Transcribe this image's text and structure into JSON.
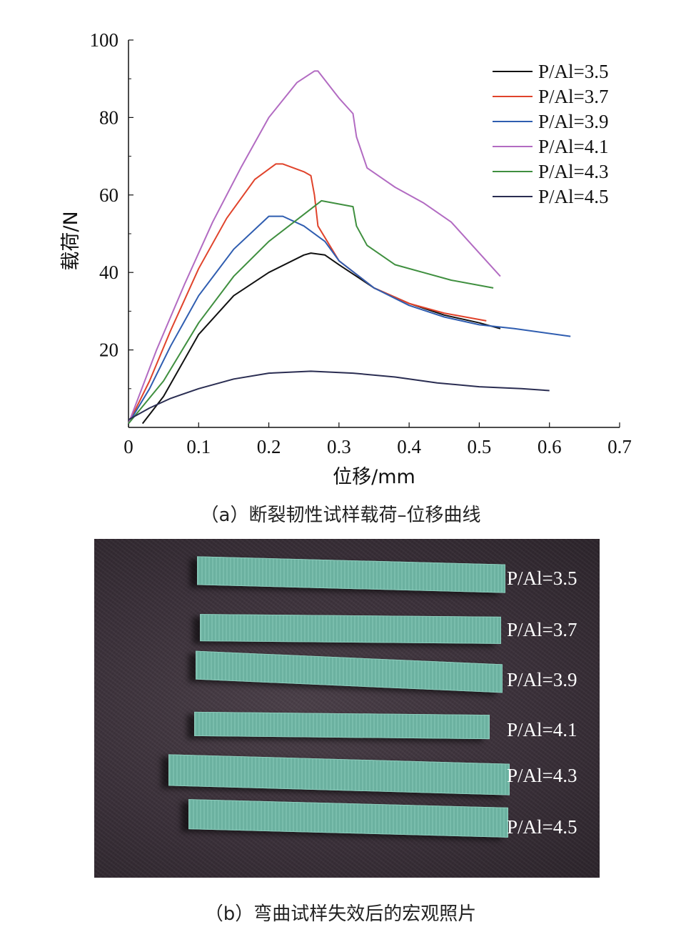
{
  "chart_data": {
    "type": "line",
    "xlabel": "位移/mm",
    "ylabel": "载荷/N",
    "xlim": [
      0,
      0.7
    ],
    "ylim": [
      0,
      100
    ],
    "xticks": [
      "0",
      "0.1",
      "0.2",
      "0.3",
      "0.4",
      "0.5",
      "0.6",
      "0.7"
    ],
    "yticks": [
      "20",
      "40",
      "60",
      "80",
      "100"
    ],
    "grid": false,
    "legend_position": "top-right",
    "series": [
      {
        "name": "P/Al=3.5",
        "color": "#111111",
        "x": [
          0.02,
          0.05,
          0.1,
          0.15,
          0.2,
          0.25,
          0.26,
          0.28,
          0.3,
          0.35,
          0.4,
          0.45,
          0.5,
          0.53
        ],
        "y": [
          1,
          8,
          24,
          34,
          40,
          44.5,
          45,
          44.5,
          42,
          36,
          32,
          29,
          27,
          25.5
        ]
      },
      {
        "name": "P/Al=3.7",
        "color": "#e0432b",
        "x": [
          0,
          0.03,
          0.06,
          0.1,
          0.14,
          0.18,
          0.21,
          0.22,
          0.25,
          0.26,
          0.265,
          0.27,
          0.3,
          0.35,
          0.4,
          0.45,
          0.51
        ],
        "y": [
          1,
          12,
          25,
          41,
          54,
          64,
          68,
          68,
          66,
          65,
          60,
          52,
          43,
          36,
          32,
          29.5,
          27.5
        ]
      },
      {
        "name": "P/Al=3.9",
        "color": "#2f5db0",
        "x": [
          0,
          0.03,
          0.06,
          0.1,
          0.15,
          0.2,
          0.22,
          0.25,
          0.28,
          0.3,
          0.35,
          0.4,
          0.45,
          0.5,
          0.55,
          0.63
        ],
        "y": [
          1,
          10,
          21,
          34,
          46,
          54.5,
          54.5,
          52,
          48,
          43,
          36,
          31.5,
          28.5,
          26.5,
          25.5,
          23.5
        ]
      },
      {
        "name": "P/Al=4.1",
        "color": "#b26bc2",
        "x": [
          0,
          0.04,
          0.08,
          0.12,
          0.16,
          0.2,
          0.24,
          0.265,
          0.27,
          0.3,
          0.32,
          0.325,
          0.34,
          0.38,
          0.42,
          0.46,
          0.5,
          0.53
        ],
        "y": [
          1,
          20,
          37,
          53,
          67,
          80,
          89,
          92,
          92,
          85,
          81,
          75,
          67,
          62,
          58,
          53,
          45,
          39
        ]
      },
      {
        "name": "P/Al=4.3",
        "color": "#3f8f3f",
        "x": [
          0,
          0.05,
          0.1,
          0.15,
          0.2,
          0.25,
          0.275,
          0.29,
          0.32,
          0.325,
          0.34,
          0.38,
          0.42,
          0.46,
          0.52
        ],
        "y": [
          1,
          12,
          27,
          39,
          48,
          55,
          58.5,
          58,
          57,
          52,
          47,
          42,
          40,
          38,
          36
        ]
      },
      {
        "name": "P/Al=4.5",
        "color": "#2a2d52",
        "x": [
          0,
          0.03,
          0.06,
          0.1,
          0.15,
          0.2,
          0.26,
          0.32,
          0.38,
          0.44,
          0.5,
          0.56,
          0.6
        ],
        "y": [
          2,
          5,
          7.5,
          10,
          12.5,
          14,
          14.5,
          14,
          13,
          11.5,
          10.5,
          10,
          9.5
        ]
      }
    ]
  },
  "captions": {
    "a": "（a）断裂韧性试样载荷–位移曲线",
    "b": "（b）弯曲试样失效后的宏观照片"
  },
  "photo": {
    "labels": [
      "P/Al=3.5",
      "P/Al=3.7",
      "P/Al=3.9",
      "P/Al=4.1",
      "P/Al=4.3",
      "P/Al=4.5"
    ],
    "specimen_color": "#6fb8a6"
  }
}
